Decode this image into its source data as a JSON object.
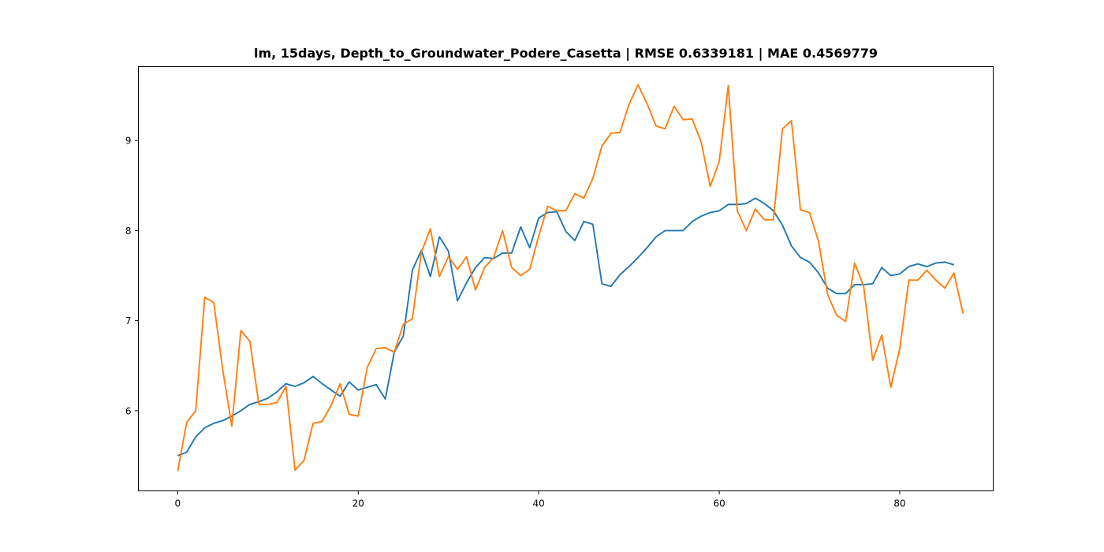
{
  "chart_data": {
    "type": "line",
    "title": "lm, 15days, Depth_to_Groundwater_Podere_Casetta | RMSE 0.6339181 | MAE 0.4569779",
    "xlabel": "",
    "ylabel": "",
    "xlim": [
      -4.35,
      90.35
    ],
    "ylim": [
      5.11,
      9.82
    ],
    "xticks": [
      0,
      20,
      40,
      60,
      80
    ],
    "yticks": [
      6,
      7,
      8,
      9
    ],
    "grid": false,
    "legend": "none",
    "series": [
      {
        "color": "#1f77b4",
        "values": [
          5.5,
          5.54,
          5.71,
          5.81,
          5.86,
          5.89,
          5.94,
          6.0,
          6.07,
          6.1,
          6.14,
          6.21,
          6.3,
          6.27,
          6.31,
          6.38,
          6.3,
          6.23,
          6.16,
          6.32,
          6.23,
          6.26,
          6.29,
          6.13,
          6.65,
          6.83,
          7.56,
          7.78,
          7.49,
          7.93,
          7.77,
          7.22,
          7.42,
          7.59,
          7.7,
          7.69,
          7.75,
          7.75,
          8.04,
          7.81,
          8.14,
          8.2,
          8.21,
          7.99,
          7.89,
          8.1,
          8.07,
          7.41,
          7.38,
          7.51,
          7.6,
          7.7,
          7.81,
          7.93,
          8.0,
          8.0,
          8.0,
          8.1,
          8.16,
          8.2,
          8.22,
          8.29,
          8.29,
          8.3,
          8.36,
          8.3,
          8.22,
          8.06,
          7.83,
          7.7,
          7.65,
          7.53,
          7.36,
          7.3,
          7.3,
          7.4,
          7.4,
          7.41,
          7.59,
          7.5,
          7.52,
          7.6,
          7.63,
          7.6,
          7.64,
          7.65,
          7.62
        ]
      },
      {
        "color": "#ff7f0e",
        "values": [
          5.33,
          5.87,
          6.0,
          7.26,
          7.2,
          6.45,
          5.83,
          6.89,
          6.77,
          6.07,
          6.07,
          6.09,
          6.27,
          5.34,
          5.45,
          5.86,
          5.88,
          6.06,
          6.3,
          5.96,
          5.94,
          6.48,
          6.69,
          6.7,
          6.65,
          6.96,
          7.02,
          7.76,
          8.02,
          7.49,
          7.71,
          7.57,
          7.71,
          7.34,
          7.59,
          7.7,
          8.0,
          7.59,
          7.5,
          7.57,
          7.94,
          8.27,
          8.22,
          8.22,
          8.41,
          8.36,
          8.58,
          8.94,
          9.08,
          9.09,
          9.4,
          9.62,
          9.41,
          9.16,
          9.13,
          9.38,
          9.23,
          9.24,
          8.98,
          8.49,
          8.77,
          9.61,
          8.22,
          8.0,
          8.24,
          8.12,
          8.12,
          9.13,
          9.22,
          8.23,
          8.2,
          7.88,
          7.29,
          7.06,
          6.99,
          7.64,
          7.38,
          6.56,
          6.84,
          6.26,
          6.69,
          7.45,
          7.45,
          7.56,
          7.45,
          7.36,
          7.53,
          7.08
        ]
      }
    ]
  }
}
